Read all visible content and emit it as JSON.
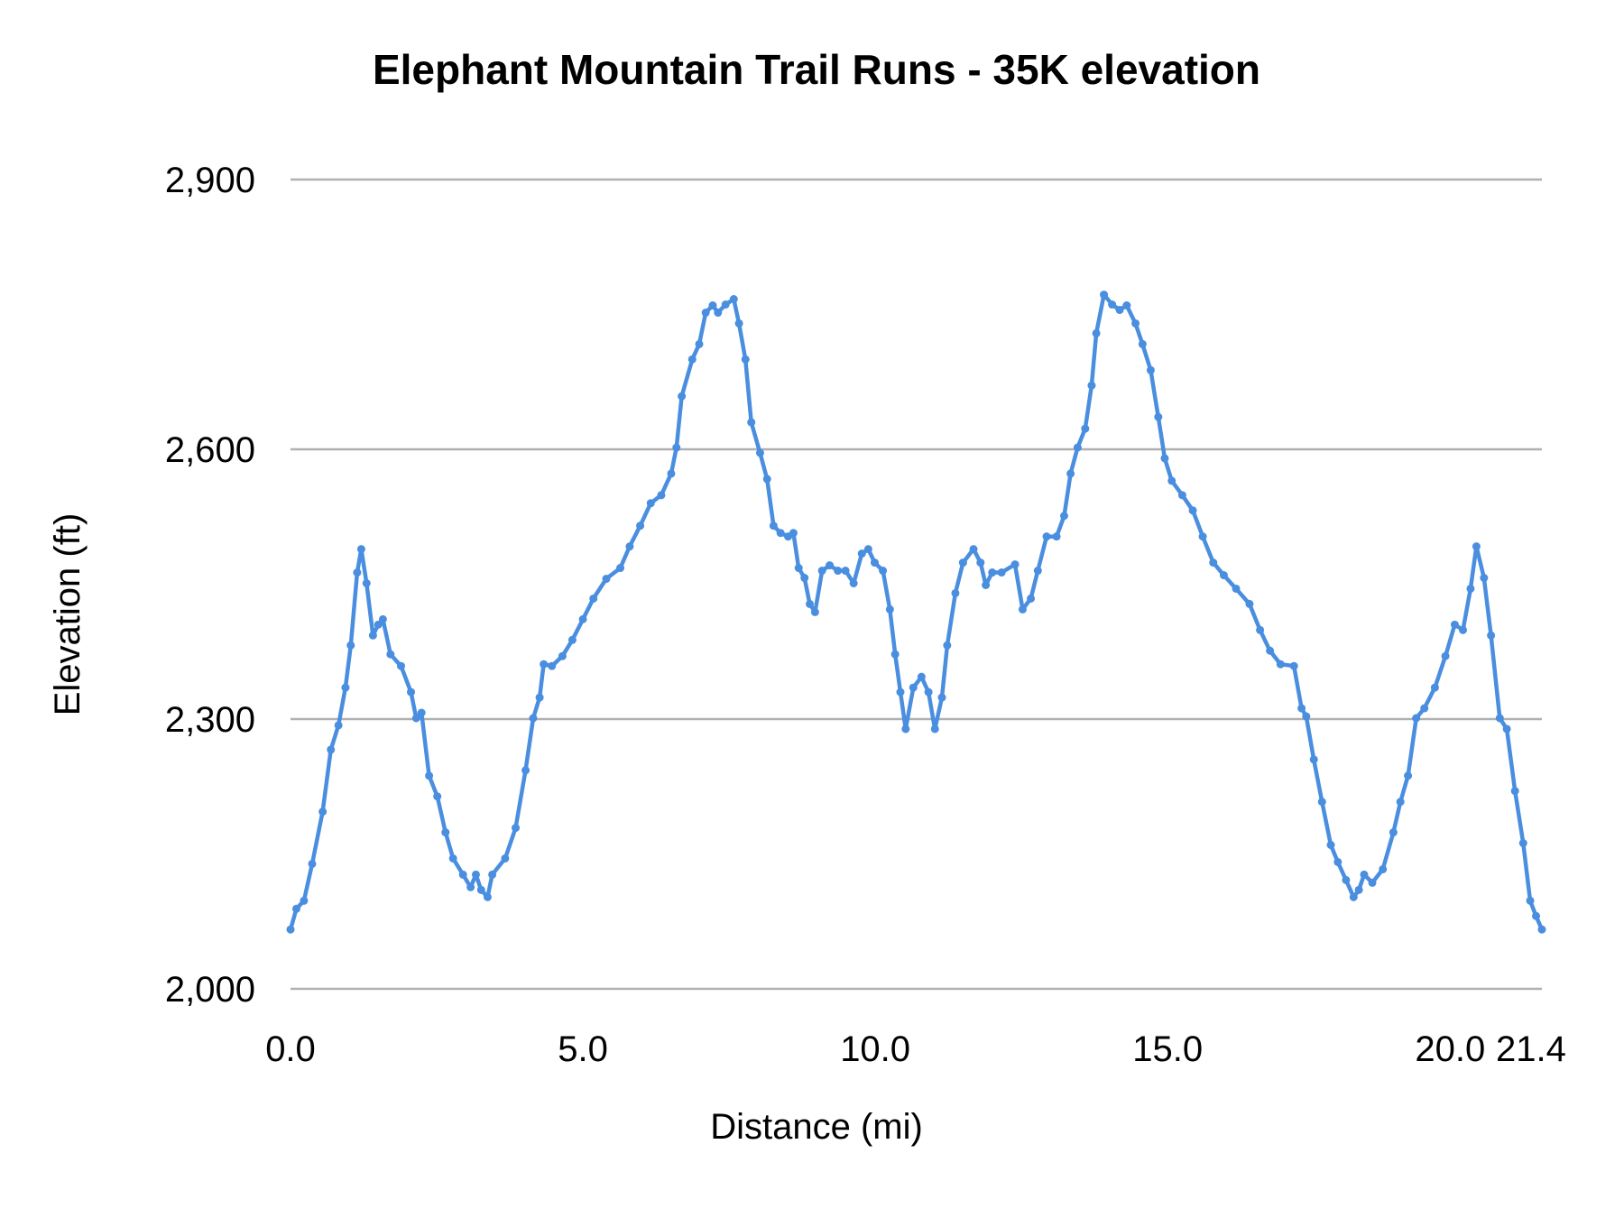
{
  "chart_data": {
    "type": "line",
    "title": "Elephant Mountain Trail Runs - 35K elevation",
    "xlabel": "Distance (mi)",
    "ylabel": "Elevation (ft)",
    "xlim": [
      0,
      21.4
    ],
    "ylim": [
      2000,
      2900
    ],
    "x_ticks": [
      "0.0",
      "5.0",
      "10.0",
      "15.0",
      "20.0",
      "21.4"
    ],
    "x_tick_values": [
      0,
      5,
      10,
      15,
      20,
      21.4
    ],
    "y_ticks": [
      "2,000",
      "2,300",
      "2,600",
      "2,900"
    ],
    "y_tick_values": [
      2000,
      2300,
      2600,
      2900
    ],
    "grid": "horizontal",
    "legend": "none",
    "color": "#4a8ee0",
    "x": [
      0,
      0.1,
      0.23,
      0.37,
      0.55,
      0.69,
      0.82,
      0.94,
      1.03,
      1.14,
      1.21,
      1.3,
      1.41,
      1.5,
      1.58,
      1.71,
      1.89,
      2.06,
      2.15,
      2.24,
      2.37,
      2.51,
      2.65,
      2.78,
      2.95,
      3.08,
      3.17,
      3.26,
      3.37,
      3.45,
      3.67,
      3.85,
      4.02,
      4.15,
      4.26,
      4.33,
      4.47,
      4.65,
      4.82,
      5.0,
      5.18,
      5.4,
      5.64,
      5.8,
      5.98,
      6.16,
      6.34,
      6.51,
      6.6,
      6.69,
      6.87,
      6.99,
      7.1,
      7.22,
      7.31,
      7.44,
      7.58,
      7.67,
      7.78,
      7.88,
      8.03,
      8.15,
      8.26,
      8.38,
      8.51,
      8.6,
      8.69,
      8.79,
      8.88,
      8.97,
      9.09,
      9.22,
      9.36,
      9.49,
      9.63,
      9.77,
      9.88,
      9.99,
      10.13,
      10.25,
      10.34,
      10.43,
      10.52,
      10.65,
      10.79,
      10.91,
      11.02,
      11.14,
      11.23,
      11.37,
      11.5,
      11.68,
      11.8,
      11.89,
      12.0,
      12.16,
      12.39,
      12.52,
      12.66,
      12.78,
      12.93,
      13.1,
      13.23,
      13.34,
      13.46,
      13.59,
      13.7,
      13.78,
      13.91,
      14.05,
      14.18,
      14.3,
      14.45,
      14.57,
      14.71,
      14.84,
      14.95,
      15.07,
      15.25,
      15.43,
      15.6,
      15.78,
      15.96,
      16.17,
      16.4,
      16.58,
      16.75,
      16.93,
      17.16,
      17.29,
      17.37,
      17.5,
      17.64,
      17.79,
      17.91,
      18.05,
      18.18,
      18.27,
      18.36,
      18.5,
      18.68,
      18.86,
      18.98,
      19.11,
      19.25,
      19.39,
      19.57,
      19.75,
      19.91,
      20.05,
      20.18,
      20.28,
      20.41,
      20.53,
      20.68,
      20.8,
      20.94,
      21.08,
      21.2,
      21.3,
      21.4
    ],
    "y": [
      2066,
      2089,
      2098,
      2139,
      2197,
      2266,
      2293,
      2335,
      2382,
      2463,
      2489,
      2451,
      2393,
      2405,
      2411,
      2372,
      2359,
      2330,
      2301,
      2307,
      2237,
      2214,
      2174,
      2145,
      2127,
      2113,
      2127,
      2110,
      2102,
      2127,
      2145,
      2179,
      2243,
      2301,
      2324,
      2361,
      2359,
      2370,
      2388,
      2411,
      2434,
      2456,
      2468,
      2492,
      2515,
      2540,
      2549,
      2573,
      2602,
      2659,
      2700,
      2717,
      2752,
      2760,
      2752,
      2761,
      2767,
      2740,
      2700,
      2630,
      2596,
      2567,
      2515,
      2507,
      2503,
      2507,
      2468,
      2457,
      2428,
      2419,
      2465,
      2471,
      2465,
      2465,
      2451,
      2484,
      2489,
      2474,
      2465,
      2422,
      2372,
      2330,
      2289,
      2335,
      2347,
      2330,
      2289,
      2324,
      2382,
      2440,
      2474,
      2489,
      2474,
      2449,
      2463,
      2463,
      2472,
      2422,
      2434,
      2465,
      2503,
      2503,
      2526,
      2573,
      2602,
      2623,
      2671,
      2729,
      2772,
      2761,
      2755,
      2760,
      2740,
      2717,
      2688,
      2636,
      2590,
      2565,
      2549,
      2532,
      2503,
      2474,
      2460,
      2445,
      2428,
      2399,
      2376,
      2361,
      2359,
      2312,
      2303,
      2255,
      2208,
      2160,
      2141,
      2121,
      2102,
      2110,
      2127,
      2118,
      2133,
      2174,
      2208,
      2237,
      2301,
      2312,
      2335,
      2370,
      2405,
      2399,
      2445,
      2492,
      2457,
      2393,
      2301,
      2289,
      2220,
      2162,
      2098,
      2081,
      2066
    ]
  }
}
